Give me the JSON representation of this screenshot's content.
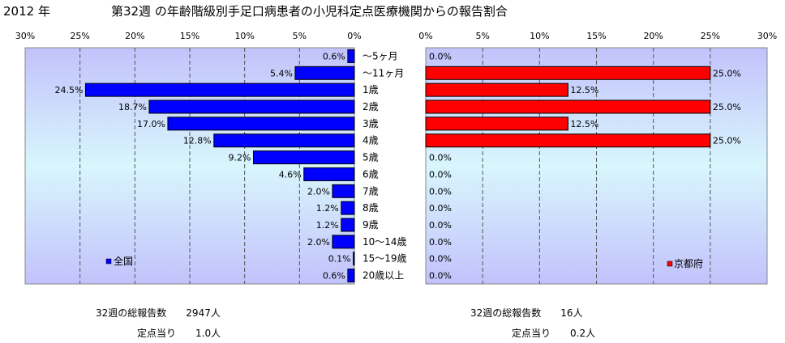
{
  "page": {
    "year_label": "2012 年",
    "title": "第32週 の年齢階級別手足口病患者の小児科定点医療機関からの報告割合"
  },
  "chart_data": {
    "type": "bar",
    "orientation": "horizontal",
    "categories": [
      "～5ヶ月",
      "～11ヶ月",
      "1歳",
      "2歳",
      "3歳",
      "4歳",
      "5歳",
      "6歳",
      "7歳",
      "8歳",
      "9歳",
      "10～14歳",
      "15～19歳",
      "20歳以上"
    ],
    "x_ticks": [
      "30%",
      "25%",
      "20%",
      "15%",
      "10%",
      "5%",
      "0%"
    ],
    "x_ticks_right": [
      "0%",
      "5%",
      "10%",
      "15%",
      "20%",
      "25%",
      "30%"
    ],
    "xlim": [
      0,
      30
    ],
    "grid": true,
    "series": [
      {
        "name": "全国",
        "color": "#0000ff",
        "direction": "left",
        "values": [
          0.6,
          5.4,
          24.5,
          18.7,
          17.0,
          12.8,
          9.2,
          4.6,
          2.0,
          1.2,
          1.2,
          2.0,
          0.1,
          0.6
        ],
        "labels": [
          "0.6%",
          "5.4%",
          "24.5%",
          "18.7%",
          "17.0%",
          "12.8%",
          "9.2%",
          "4.6%",
          "2.0%",
          "1.2%",
          "1.2%",
          "2.0%",
          "0.1%",
          "0.6%"
        ],
        "legend_position": "bottom-left"
      },
      {
        "name": "京都府",
        "color": "#ff0000",
        "direction": "right",
        "values": [
          0.0,
          25.0,
          12.5,
          25.0,
          12.5,
          25.0,
          0.0,
          0.0,
          0.0,
          0.0,
          0.0,
          0.0,
          0.0,
          0.0
        ],
        "labels": [
          "0.0%",
          "25.0%",
          "12.5%",
          "25.0%",
          "12.5%",
          "25.0%",
          "0.0%",
          "0.0%",
          "0.0%",
          "0.0%",
          "0.0%",
          "0.0%",
          "0.0%",
          "0.0%"
        ],
        "legend_position": "bottom-right"
      }
    ]
  },
  "stats": {
    "national": {
      "total_label": "32週の総報告数",
      "total_value": "2947人",
      "per_label": "定点当り",
      "per_value": "1.0人"
    },
    "kyoto": {
      "total_label": "32週の総報告数",
      "total_value": "16人",
      "per_label": "定点当り",
      "per_value": "0.2人"
    }
  }
}
